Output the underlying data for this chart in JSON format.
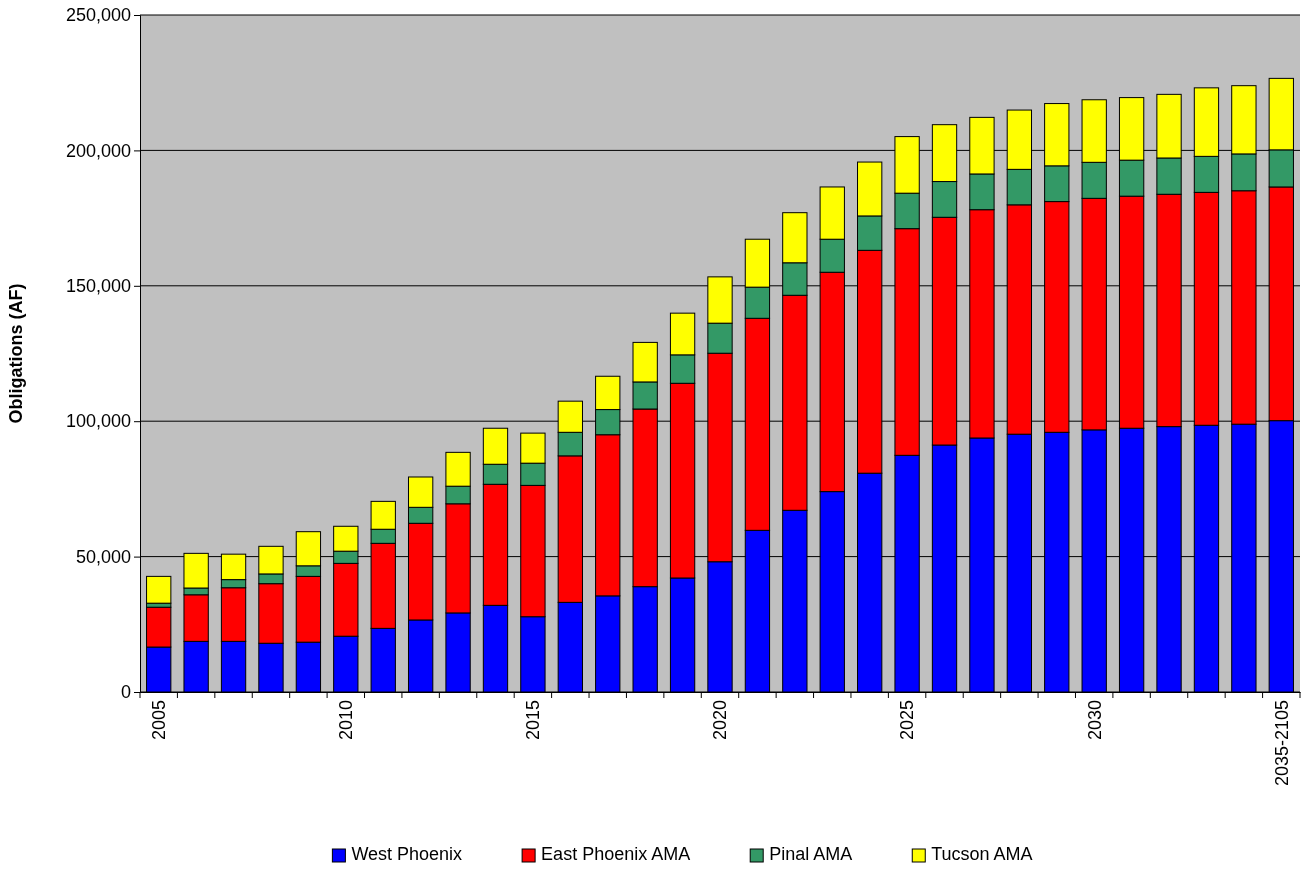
{
  "chart_data": {
    "type": "bar",
    "stacked": true,
    "ylabel": "Obligations (AF)",
    "categories": [
      "2005",
      null,
      null,
      null,
      null,
      "2010",
      null,
      null,
      null,
      null,
      "2015",
      null,
      null,
      null,
      null,
      "2020",
      null,
      null,
      null,
      null,
      "2025",
      null,
      null,
      null,
      null,
      "2030",
      null,
      null,
      null,
      null,
      "2035-2105"
    ],
    "ylim": [
      0,
      250000
    ],
    "yticks": [
      {
        "value": 0,
        "label": "0"
      },
      {
        "value": 50000,
        "label": "50,000"
      },
      {
        "value": 100000,
        "label": "100,000"
      },
      {
        "value": 150000,
        "label": "150,000"
      },
      {
        "value": 200000,
        "label": "200,000"
      },
      {
        "value": 250000,
        "label": "250,000"
      }
    ],
    "grid": "y",
    "legend": "bottom",
    "series": [
      {
        "name": "West Phoenix",
        "color": "#0000ff",
        "values": [
          16600,
          18700,
          18700,
          18000,
          18400,
          20600,
          23500,
          26600,
          29200,
          32000,
          27800,
          33100,
          35500,
          38900,
          42100,
          48100,
          59700,
          67100,
          74000,
          80800,
          87400,
          91200,
          93800,
          95200,
          95900,
          96800,
          97400,
          98000,
          98500,
          98900,
          100200
        ]
      },
      {
        "name": "East Phoenix AMA",
        "color": "#ff0000",
        "values": [
          14700,
          17200,
          19800,
          22000,
          24300,
          26900,
          31400,
          35700,
          40300,
          44700,
          48500,
          54100,
          59500,
          65600,
          71900,
          77000,
          78300,
          79400,
          81000,
          82300,
          83700,
          84100,
          84300,
          84700,
          85200,
          85500,
          85700,
          85800,
          86000,
          86200,
          86300
        ]
      },
      {
        "name": "Pinal AMA",
        "color": "#339966",
        "values": [
          1500,
          2500,
          3000,
          3600,
          3900,
          4500,
          5200,
          5900,
          6500,
          7400,
          8200,
          8700,
          9300,
          10000,
          10500,
          11100,
          11500,
          12000,
          12200,
          12700,
          13100,
          13200,
          13200,
          13100,
          13200,
          13300,
          13300,
          13400,
          13300,
          13600,
          13700
        ]
      },
      {
        "name": "Tucson AMA",
        "color": "#ffff00",
        "values": [
          9900,
          12800,
          9400,
          10200,
          12600,
          9200,
          10300,
          11200,
          12500,
          13300,
          11100,
          11500,
          12300,
          14600,
          15400,
          17100,
          17700,
          18500,
          19300,
          19900,
          20900,
          21000,
          20900,
          21900,
          23000,
          23100,
          23100,
          23500,
          25300,
          25200,
          26400
        ]
      }
    ]
  }
}
